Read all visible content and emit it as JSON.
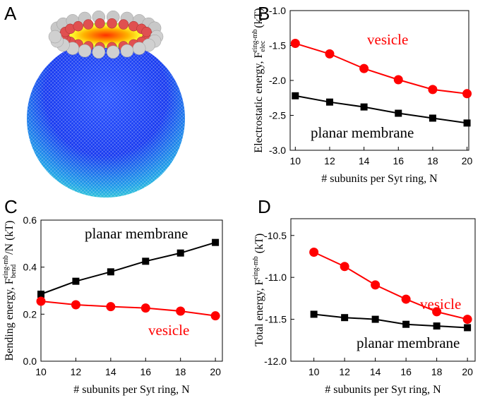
{
  "panel_a": {
    "label": "A"
  },
  "chart_data": [
    {
      "type": "line",
      "panel": "B",
      "ylabel": "Electrostatic energy, F",
      "ylabel_sup": "ring-mb",
      "ylabel_sub": "elec",
      "ylabel_end": " (kT)",
      "xlabel": "# subunits per Syt ring, N",
      "x": [
        10,
        12,
        14,
        16,
        18,
        20
      ],
      "series": [
        {
          "name": "vesicle",
          "color": "#ff0000",
          "marker": "circle",
          "values": [
            -1.47,
            -1.62,
            -1.83,
            -1.99,
            -2.13,
            -2.19
          ]
        },
        {
          "name": "planar membrane",
          "color": "#000000",
          "marker": "square",
          "values": [
            -2.22,
            -2.31,
            -2.38,
            -2.47,
            -2.54,
            -2.61
          ]
        }
      ],
      "xlim": [
        9.7,
        20.1
      ],
      "xticks": [
        10,
        12,
        14,
        16,
        18,
        20
      ],
      "ylim": [
        -3.0,
        -1.0
      ],
      "yticks": [
        {
          "value": -3.0,
          "label": "-3.0"
        },
        {
          "value": -2.5,
          "label": "-2.5"
        },
        {
          "value": -2.0,
          "label": "-2.0"
        },
        {
          "value": -1.5,
          "label": "-1.5"
        },
        {
          "value": -1.0,
          "label": "-1.0"
        }
      ]
    },
    {
      "type": "line",
      "panel": "C",
      "ylabel": "Bending energy, F",
      "ylabel_sup": "ring-mb",
      "ylabel_sub": "bend",
      "ylabel_end": "/N (kT)",
      "xlabel": "# subunits per Syt ring, N",
      "x": [
        10,
        12,
        14,
        16,
        18,
        20
      ],
      "series": [
        {
          "name": "planar membrane",
          "color": "#000000",
          "marker": "square",
          "values": [
            0.285,
            0.34,
            0.38,
            0.425,
            0.46,
            0.505
          ]
        },
        {
          "name": "vesicle",
          "color": "#ff0000",
          "marker": "circle",
          "values": [
            0.255,
            0.24,
            0.232,
            0.226,
            0.213,
            0.193
          ]
        }
      ],
      "xlim": [
        10,
        20.4
      ],
      "xticks": [
        10,
        12,
        14,
        16,
        18,
        20
      ],
      "ylim": [
        0,
        0.6
      ],
      "yticks": [
        {
          "value": 0,
          "label": "0.0"
        },
        0.2,
        0.4,
        0.6
      ]
    },
    {
      "type": "line",
      "panel": "D",
      "ylabel": "Total energy, F",
      "ylabel_sup": "ring-mb",
      "ylabel_end": " (kT)",
      "xlabel": "# subunits per Syt ring, N",
      "x": [
        10,
        12,
        14,
        16,
        18,
        20
      ],
      "series": [
        {
          "name": "vesicle",
          "color": "#ff0000",
          "marker": "circle",
          "values": [
            -10.7,
            -10.87,
            -11.09,
            -11.26,
            -11.41,
            -11.5
          ]
        },
        {
          "name": "planar membrane",
          "color": "#000000",
          "marker": "square",
          "values": [
            -11.44,
            -11.48,
            -11.5,
            -11.56,
            -11.58,
            -11.6
          ]
        }
      ],
      "xlim": [
        8.5,
        20.5
      ],
      "xticks": [
        10,
        12,
        14,
        16,
        18,
        20
      ],
      "ylim": [
        -12.0,
        -10.3
      ],
      "yticks": [
        {
          "value": -12.0,
          "label": "-12.0"
        },
        {
          "value": -11.5,
          "label": "-11.5"
        },
        {
          "value": -11.0,
          "label": "-11.0"
        },
        {
          "value": -10.5,
          "label": "-10.5"
        }
      ]
    }
  ]
}
